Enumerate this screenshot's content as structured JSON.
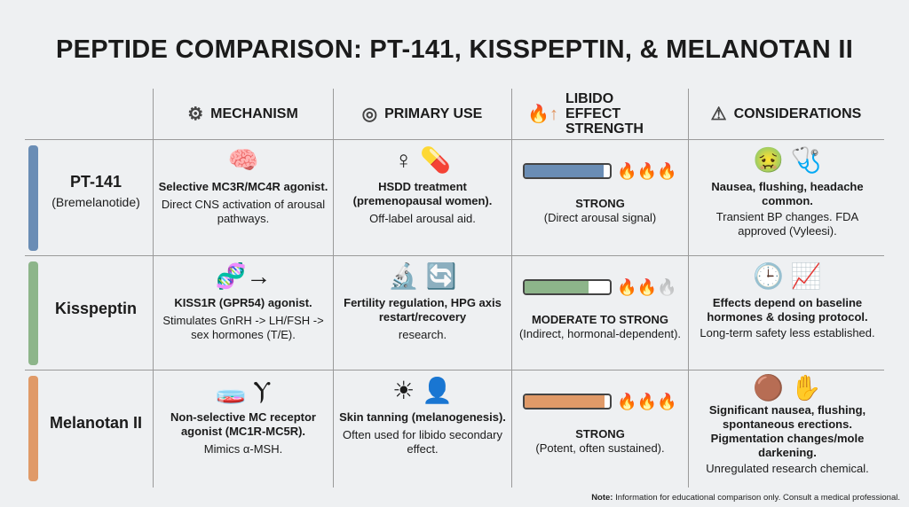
{
  "title": "PEPTIDE COMPARISON: PT-141, KISSPEPTIN, & MELANOTAN II",
  "headers": [
    {
      "label": "MECHANISM",
      "icon": "gear-icon"
    },
    {
      "label": "PRIMARY USE",
      "icon": "target-icon"
    },
    {
      "label": "LIBIDO EFFECT STRENGTH",
      "icon": "flame-up-arrow-icon"
    },
    {
      "label": "CONSIDERATIONS",
      "icon": "warning-icon"
    }
  ],
  "rows": [
    {
      "name": "PT-141",
      "alt": "(Bremelanotide)",
      "color": "#6a8db5",
      "mechanism": {
        "bold": "Selective MC3R/MC4R agonist.",
        "text": "Direct CNS activation of arousal pathways."
      },
      "use": {
        "bold": "HSDD treatment (premenopausal women).",
        "text": "Off-label arousal aid."
      },
      "libido": {
        "level": 0.92,
        "flames_filled": 3,
        "bold": "STRONG",
        "text": "(Direct arousal signal)"
      },
      "considerations": {
        "bold": "Nausea, flushing, headache common.",
        "text": "Transient BP changes. FDA approved (Vyleesi)."
      }
    },
    {
      "name": "Kisspeptin",
      "alt": "",
      "color": "#8db58a",
      "mechanism": {
        "bold": "KISS1R (GPR54) agonist.",
        "text": "Stimulates GnRH -> LH/FSH -> sex hormones (T/E)."
      },
      "use": {
        "bold": "Fertility regulation, HPG axis restart/recovery",
        "text": "research."
      },
      "libido": {
        "level": 0.75,
        "flames_filled": 2,
        "bold": "MODERATE TO STRONG",
        "text": "(Indirect, hormonal-dependent)."
      },
      "considerations": {
        "bold": "Effects depend on baseline hormones & dosing protocol.",
        "text": "Long-term safety less established."
      }
    },
    {
      "name": "Melanotan II",
      "alt": "",
      "color": "#e09a68",
      "mechanism": {
        "bold": "Non-selective MC receptor agonist (MC1R-MC5R).",
        "text": "Mimics α-MSH."
      },
      "use": {
        "bold": "Skin tanning (melanogenesis).",
        "text": "Often used for libido secondary effect."
      },
      "libido": {
        "level": 0.93,
        "flames_filled": 3,
        "bold": "STRONG",
        "text": "(Potent, often sustained)."
      },
      "considerations": {
        "bold": "Significant nausea, flushing, spontaneous erections. Pigmentation changes/mole darkening.",
        "text": "Unregulated research chemical."
      }
    }
  ],
  "note": {
    "label": "Note:",
    "text": " Information for educational comparison only. Consult a medical professional."
  }
}
